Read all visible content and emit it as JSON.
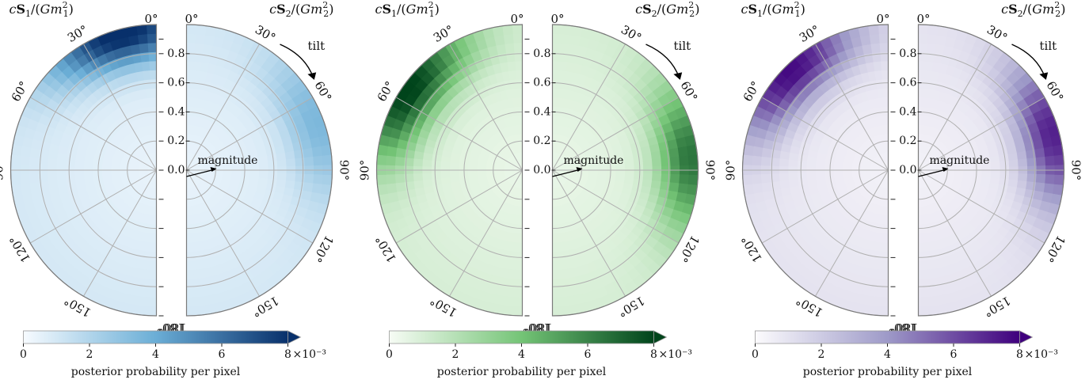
{
  "figure": {
    "panels": [
      {
        "name": "blue",
        "colormap": {
          "light": "#f7fbff",
          "mid": "#6baed6",
          "dark": "#08306b"
        },
        "left_title": "cS1/(Gm1²)",
        "right_title": "cS2/(Gm2²)"
      },
      {
        "name": "green",
        "colormap": {
          "light": "#f7fcf5",
          "mid": "#74c476",
          "dark": "#00441b"
        },
        "left_title": "cS1/(Gm1²)",
        "right_title": "cS2/(Gm2²)"
      },
      {
        "name": "purple",
        "colormap": {
          "light": "#fcfbfd",
          "mid": "#9e9ac8",
          "dark": "#3f007d"
        },
        "left_title": "cS1/(Gm1²)",
        "right_title": "cS2/(Gm2²)"
      }
    ],
    "annotations": {
      "tilt": "tilt",
      "magnitude": "magnitude"
    },
    "colorbar_label": "posterior probability per pixel",
    "colorbar_ticks": [
      "0",
      "2",
      "4",
      "6",
      "8"
    ],
    "colorbar_scale": "×10⁻³"
  },
  "chart_data": {
    "type": "heatmap",
    "projection": "polar half-disks (spin magnitude radial, tilt angle azimuthal)",
    "magnitude_ticks": [
      "0.0",
      "0.2",
      "0.4",
      "0.6",
      "0.8"
    ],
    "tilt_ticks": [
      "0°",
      "30°",
      "60°",
      "90°",
      "120°",
      "150°",
      "180°"
    ],
    "magnitude_range": [
      0,
      1
    ],
    "tilt_range_deg": [
      0,
      180
    ],
    "color_range": [
      0,
      0.008
    ],
    "panels": [
      {
        "colormap": "Blues",
        "left_peak": {
          "tilt_deg": 15,
          "magnitude": 0.97,
          "value": 0.0085
        },
        "right_peak": {
          "tilt_deg": 70,
          "magnitude": 0.95,
          "value": 0.0035
        }
      },
      {
        "colormap": "Greens",
        "left_peak": {
          "tilt_deg": 55,
          "magnitude": 0.95,
          "value": 0.0082
        },
        "right_peak": {
          "tilt_deg": 85,
          "magnitude": 0.95,
          "value": 0.0065
        }
      },
      {
        "colormap": "Purples",
        "left_peak": {
          "tilt_deg": 45,
          "magnitude": 0.95,
          "value": 0.0078
        },
        "right_peak": {
          "tilt_deg": 75,
          "magnitude": 0.95,
          "value": 0.0072
        }
      }
    ]
  }
}
